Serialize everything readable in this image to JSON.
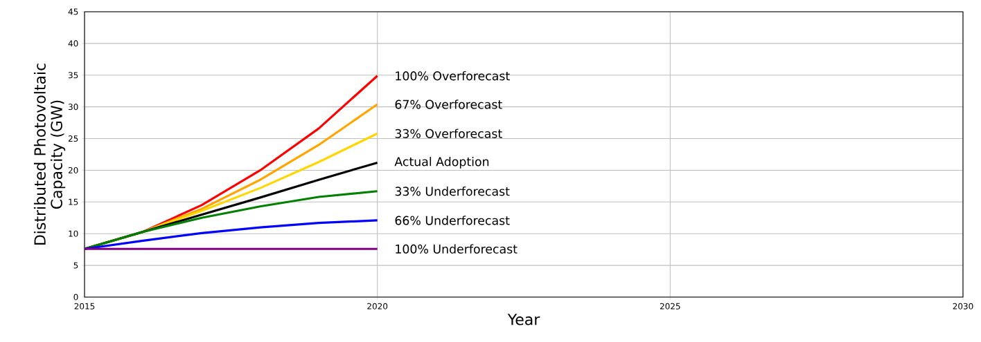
{
  "chart_data": {
    "type": "line",
    "xlabel": "Year",
    "ylabel": "Distributed Photovoltaic Capacity (GW)",
    "x": [
      2015,
      2016,
      2017,
      2018,
      2019,
      2020
    ],
    "series": [
      {
        "name": "100% Overforecast",
        "color": "#ff0000",
        "values": [
          7.6,
          10.3,
          14.5,
          20.0,
          26.6,
          34.9
        ]
      },
      {
        "name": "67% Overforecast",
        "color": "#ffa500",
        "values": [
          7.6,
          10.3,
          13.9,
          18.5,
          24.0,
          30.4
        ]
      },
      {
        "name": "33% Overforecast",
        "color": "#ffd700",
        "values": [
          7.6,
          10.3,
          13.6,
          17.2,
          21.3,
          25.8
        ]
      },
      {
        "name": "Actual Adoption",
        "color": "#000000",
        "values": [
          7.6,
          10.3,
          13.0,
          15.7,
          18.5,
          21.2
        ]
      },
      {
        "name": "33% Underforecast",
        "color": "#008000",
        "values": [
          7.6,
          10.3,
          12.5,
          14.3,
          15.8,
          16.7
        ]
      },
      {
        "name": "66% Underforecast",
        "color": "#0000ff",
        "values": [
          7.6,
          8.9,
          10.1,
          11.0,
          11.7,
          12.1
        ]
      },
      {
        "name": "100% Underforecast",
        "color": "#800080",
        "values": [
          7.6,
          7.6,
          7.6,
          7.6,
          7.6,
          7.6
        ]
      }
    ],
    "xlim": [
      2015,
      2030
    ],
    "ylim": [
      0,
      45
    ],
    "xticks": [
      2015,
      2020,
      2025,
      2030
    ],
    "yticks": [
      0,
      5,
      10,
      15,
      20,
      25,
      30,
      35,
      40,
      45
    ],
    "grid": true,
    "legend": false,
    "marker": "none",
    "line_style": "solid"
  }
}
